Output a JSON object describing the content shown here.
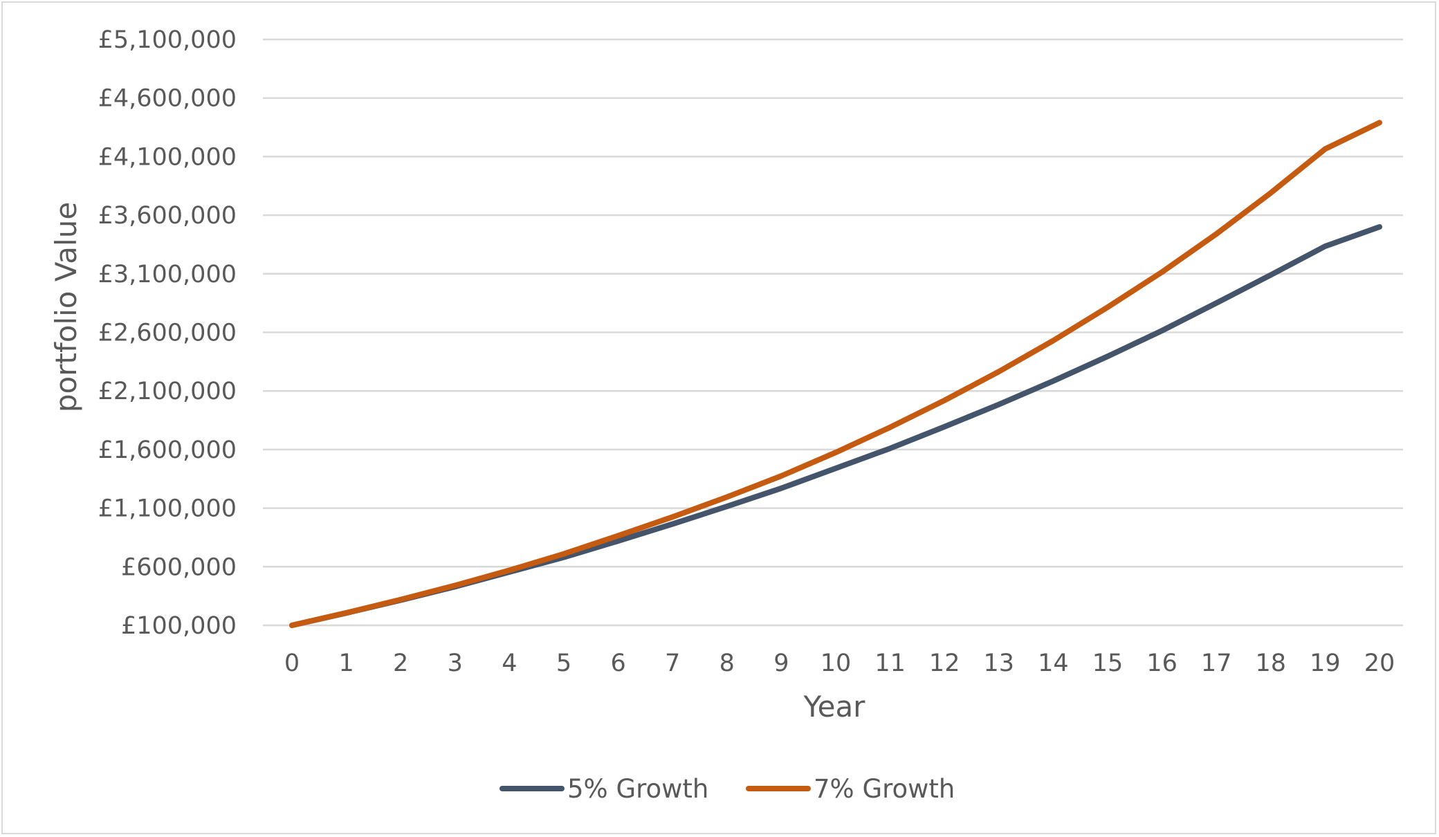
{
  "chart_data": {
    "type": "line",
    "title": "",
    "xlabel": "Year",
    "ylabel": "portfolio Value",
    "categories": [
      "0",
      "1",
      "2",
      "3",
      "4",
      "5",
      "6",
      "7",
      "8",
      "9",
      "10",
      "11",
      "12",
      "13",
      "14",
      "15",
      "16",
      "17",
      "18",
      "19",
      "20"
    ],
    "y_tick_labels": [
      "£100,000",
      "£600,000",
      "£1,100,000",
      "£1,600,000",
      "£2,100,000",
      "£2,600,000",
      "£3,100,000",
      "£3,600,000",
      "£4,100,000",
      "£4,600,000",
      "£5,100,000"
    ],
    "ylim": [
      100000,
      5100000
    ],
    "y_step": 500000,
    "grid": true,
    "legend_position": "bottom",
    "series": [
      {
        "name": "5% Growth",
        "color": "#44546a",
        "values": [
          100000,
          205000,
          315000,
          430000,
          555000,
          680000,
          820000,
          965000,
          1115000,
          1270000,
          1440000,
          1610000,
          1795000,
          1985000,
          2185000,
          2395000,
          2615000,
          2850000,
          3090000,
          3335000,
          3500000
        ]
      },
      {
        "name": "7% Growth",
        "color": "#c55a11",
        "values": [
          100000,
          207000,
          320000,
          440000,
          570000,
          710000,
          865000,
          1025000,
          1195000,
          1375000,
          1575000,
          1790000,
          2020000,
          2265000,
          2530000,
          2815000,
          3115000,
          3440000,
          3790000,
          4165000,
          4390000
        ]
      }
    ]
  }
}
